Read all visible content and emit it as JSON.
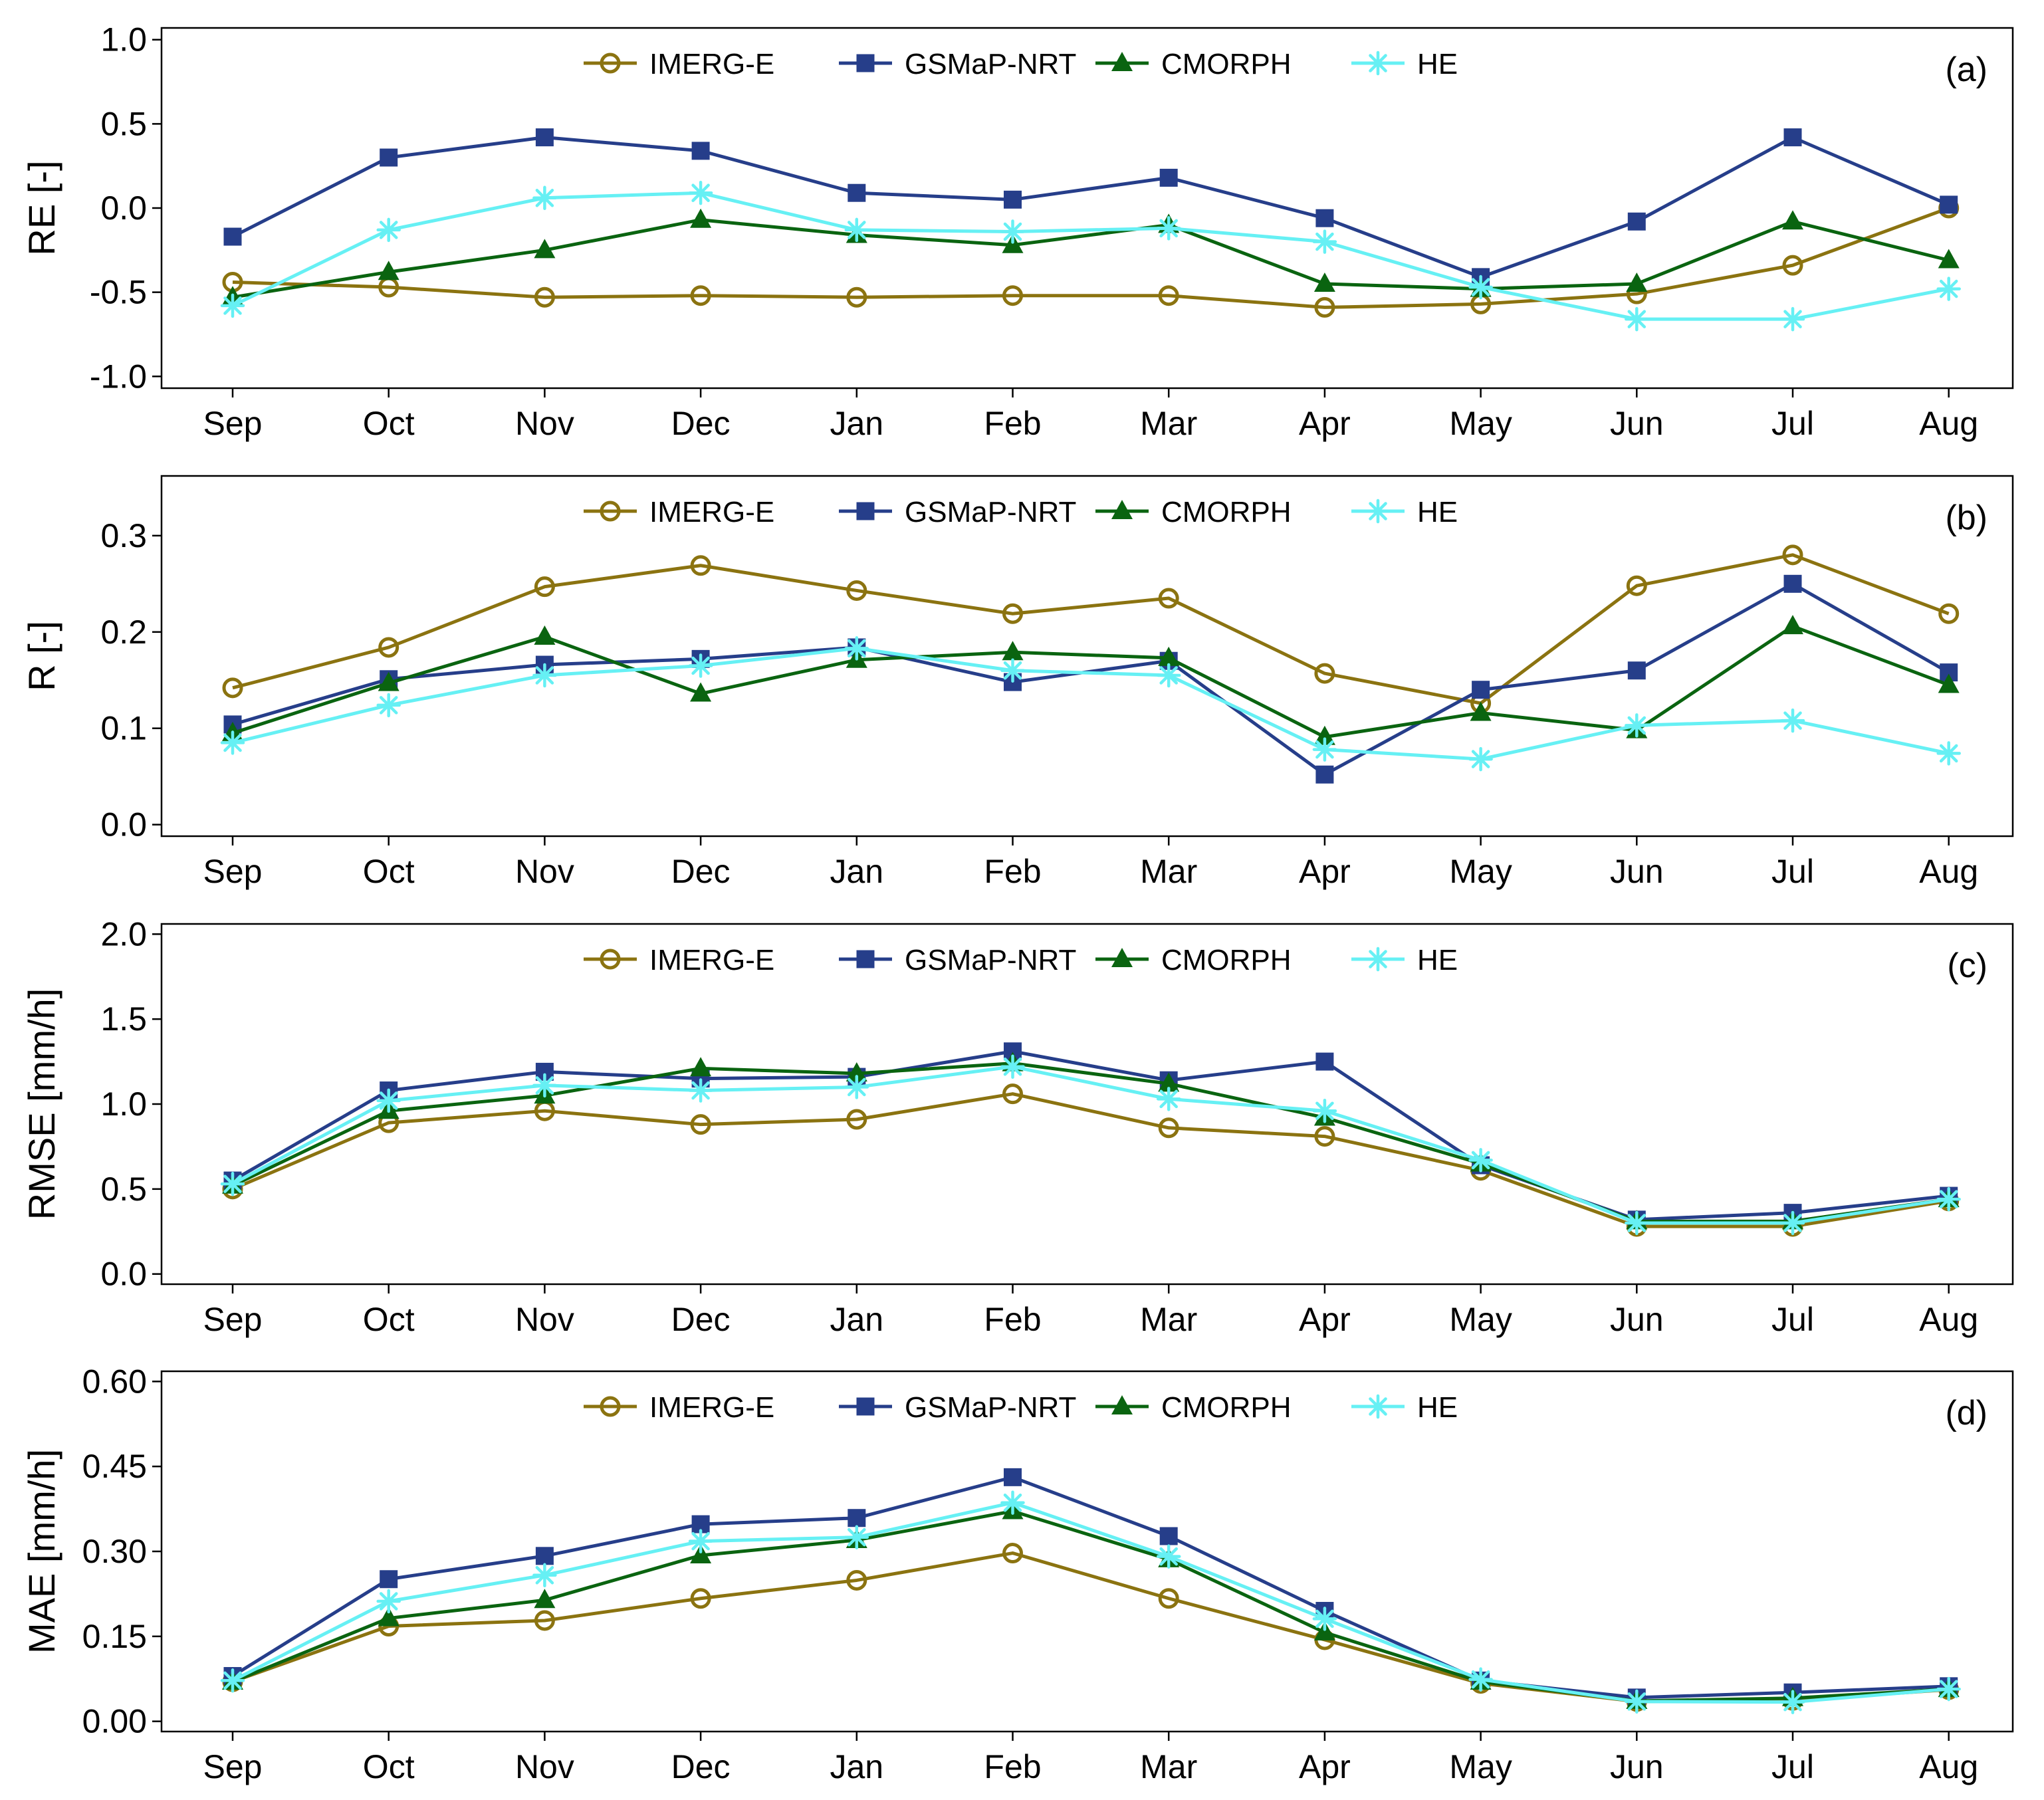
{
  "chart_data": [
    {
      "type": "line",
      "panel_label": "(a)",
      "ylabel": "RE [-]",
      "ylim": [
        -1.07,
        1.07
      ],
      "yticks": [
        -1.0,
        -0.5,
        0.0,
        0.5,
        1.0
      ],
      "ytick_labels": [
        "-1.0",
        "-0.5",
        "0.0",
        "0.5",
        "1.0"
      ],
      "categories": [
        "Sep",
        "Oct",
        "Nov",
        "Dec",
        "Jan",
        "Feb",
        "Mar",
        "Apr",
        "May",
        "Jun",
        "Jul",
        "Aug"
      ],
      "legend": [
        "IMERG-E",
        "GSMaP-NRT",
        "CMORPH",
        "HE"
      ],
      "series": [
        {
          "name": "IMERG-E",
          "values": [
            -0.44,
            -0.47,
            -0.53,
            -0.52,
            -0.53,
            -0.52,
            -0.52,
            -0.59,
            -0.57,
            -0.51,
            -0.34,
            0.0
          ]
        },
        {
          "name": "GSMaP-NRT",
          "values": [
            -0.17,
            0.3,
            0.42,
            0.34,
            0.09,
            0.05,
            0.18,
            -0.06,
            -0.41,
            -0.08,
            0.42,
            0.02
          ]
        },
        {
          "name": "CMORPH",
          "values": [
            -0.53,
            -0.38,
            -0.25,
            -0.07,
            -0.16,
            -0.22,
            -0.1,
            -0.45,
            -0.48,
            -0.45,
            -0.08,
            -0.31
          ]
        },
        {
          "name": "HE",
          "values": [
            -0.58,
            -0.13,
            0.06,
            0.09,
            -0.13,
            -0.14,
            -0.12,
            -0.2,
            -0.47,
            -0.66,
            -0.66,
            -0.48
          ]
        }
      ]
    },
    {
      "type": "line",
      "panel_label": "(b)",
      "ylabel": "R [-]",
      "ylim": [
        -0.012,
        0.362
      ],
      "yticks": [
        0.0,
        0.1,
        0.2,
        0.3
      ],
      "ytick_labels": [
        "0.0",
        "0.1",
        "0.2",
        "0.3"
      ],
      "categories": [
        "Sep",
        "Oct",
        "Nov",
        "Dec",
        "Jan",
        "Feb",
        "Mar",
        "Apr",
        "May",
        "Jun",
        "Jul",
        "Aug"
      ],
      "legend": [
        "IMERG-E",
        "GSMaP-NRT",
        "CMORPH",
        "HE"
      ],
      "series": [
        {
          "name": "IMERG-E",
          "values": [
            0.142,
            0.184,
            0.247,
            0.269,
            0.243,
            0.219,
            0.235,
            0.157,
            0.126,
            0.248,
            0.28,
            0.219
          ]
        },
        {
          "name": "GSMaP-NRT",
          "values": [
            0.104,
            0.151,
            0.166,
            0.172,
            0.184,
            0.148,
            0.17,
            0.052,
            0.14,
            0.16,
            0.25,
            0.158
          ]
        },
        {
          "name": "CMORPH",
          "values": [
            0.095,
            0.147,
            0.195,
            0.136,
            0.171,
            0.179,
            0.173,
            0.091,
            0.116,
            0.098,
            0.206,
            0.145
          ]
        },
        {
          "name": "HE",
          "values": [
            0.085,
            0.124,
            0.155,
            0.165,
            0.183,
            0.16,
            0.155,
            0.078,
            0.068,
            0.103,
            0.108,
            0.074
          ]
        }
      ]
    },
    {
      "type": "line",
      "panel_label": "(c)",
      "ylabel": "RMSE [mm/h]",
      "ylim": [
        -0.06,
        2.06
      ],
      "yticks": [
        0.0,
        0.5,
        1.0,
        1.5,
        2.0
      ],
      "ytick_labels": [
        "0.0",
        "0.5",
        "1.0",
        "1.5",
        "2.0"
      ],
      "categories": [
        "Sep",
        "Oct",
        "Nov",
        "Dec",
        "Jan",
        "Feb",
        "Mar",
        "Apr",
        "May",
        "Jun",
        "Jul",
        "Aug"
      ],
      "legend": [
        "IMERG-E",
        "GSMaP-NRT",
        "CMORPH",
        "HE"
      ],
      "series": [
        {
          "name": "IMERG-E",
          "values": [
            0.5,
            0.89,
            0.96,
            0.88,
            0.91,
            1.06,
            0.86,
            0.81,
            0.61,
            0.28,
            0.28,
            0.43
          ]
        },
        {
          "name": "GSMaP-NRT",
          "values": [
            0.55,
            1.08,
            1.19,
            1.15,
            1.16,
            1.31,
            1.14,
            1.25,
            0.64,
            0.32,
            0.36,
            0.46
          ]
        },
        {
          "name": "CMORPH",
          "values": [
            0.52,
            0.96,
            1.05,
            1.21,
            1.18,
            1.24,
            1.12,
            0.92,
            0.65,
            0.31,
            0.31,
            0.44
          ]
        },
        {
          "name": "HE",
          "values": [
            0.53,
            1.02,
            1.11,
            1.08,
            1.1,
            1.22,
            1.03,
            0.96,
            0.67,
            0.3,
            0.3,
            0.44
          ]
        }
      ]
    },
    {
      "type": "line",
      "panel_label": "(d)",
      "ylabel": "MAE [mm/h]",
      "ylim": [
        -0.018,
        0.618
      ],
      "yticks": [
        0.0,
        0.15,
        0.3,
        0.45,
        0.6
      ],
      "ytick_labels": [
        "0.00",
        "0.15",
        "0.30",
        "0.45",
        "0.60"
      ],
      "categories": [
        "Sep",
        "Oct",
        "Nov",
        "Dec",
        "Jan",
        "Feb",
        "Mar",
        "Apr",
        "May",
        "Jun",
        "Jul",
        "Aug"
      ],
      "legend": [
        "IMERG-E",
        "GSMaP-NRT",
        "CMORPH",
        "HE"
      ],
      "series": [
        {
          "name": "IMERG-E",
          "values": [
            0.07,
            0.168,
            0.178,
            0.217,
            0.249,
            0.297,
            0.217,
            0.144,
            0.067,
            0.035,
            0.037,
            0.056
          ]
        },
        {
          "name": "GSMaP-NRT",
          "values": [
            0.08,
            0.251,
            0.292,
            0.348,
            0.359,
            0.431,
            0.327,
            0.195,
            0.072,
            0.042,
            0.051,
            0.062
          ]
        },
        {
          "name": "CMORPH",
          "values": [
            0.07,
            0.182,
            0.214,
            0.293,
            0.32,
            0.371,
            0.286,
            0.157,
            0.07,
            0.036,
            0.041,
            0.057
          ]
        },
        {
          "name": "HE",
          "values": [
            0.072,
            0.212,
            0.258,
            0.318,
            0.325,
            0.386,
            0.291,
            0.181,
            0.074,
            0.035,
            0.034,
            0.057
          ]
        }
      ]
    }
  ],
  "styles": {
    "IMERG-E": {
      "color": "#8b7310",
      "marker": "circle"
    },
    "GSMaP-NRT": {
      "color": "#263e8a",
      "marker": "square"
    },
    "CMORPH": {
      "color": "#0a6410",
      "marker": "triangle"
    },
    "HE": {
      "color": "#66f0f4",
      "marker": "asterisk"
    }
  }
}
